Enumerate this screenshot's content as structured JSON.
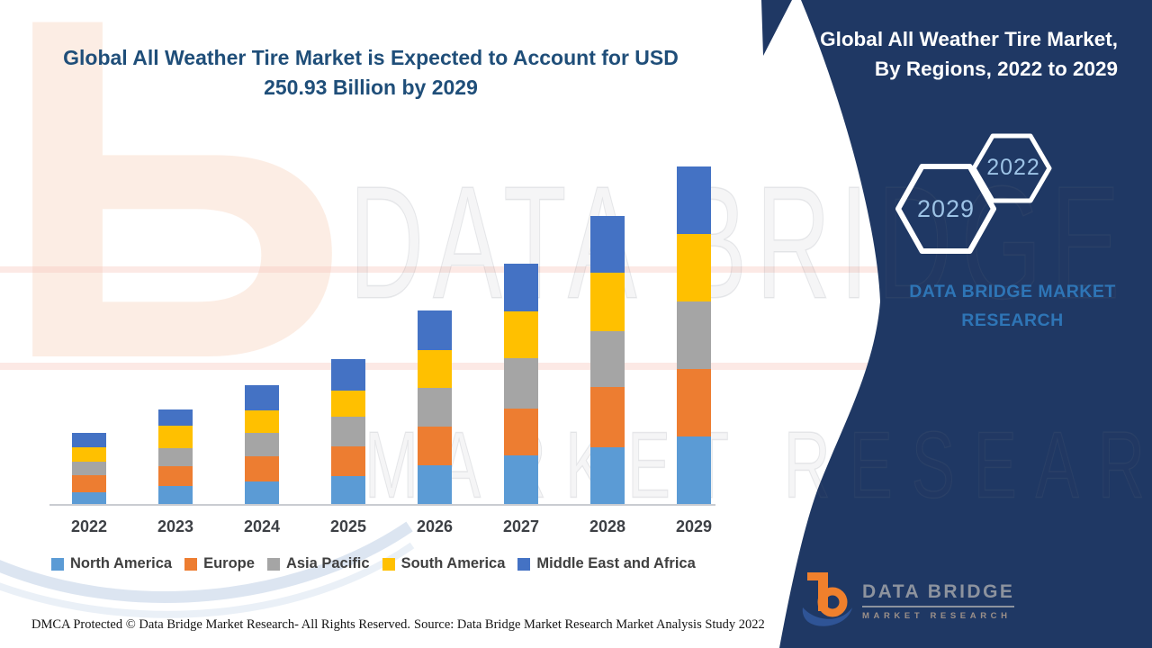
{
  "title": {
    "text": "Global All Weather Tire Market is Expected to Account for USD 250.93 Billion by 2029",
    "color": "#1F4E79"
  },
  "panel": {
    "bg_color": "#1F3864",
    "title_line1": "Global All Weather Tire Market,",
    "title_line2": "By Regions, 2022 to 2029",
    "hexagon_large_year": "2029",
    "hexagon_small_year": "2022",
    "hexagon_year_color": "#9DC3E6",
    "brand_caption": "DATA BRIDGE MARKET RESEARCH",
    "brand_caption_color": "#2E75B6"
  },
  "chart_data": {
    "type": "bar",
    "stacked": true,
    "title": "Global All Weather Tire Market, By Regions, 2022 to 2029",
    "unit": "USD Billion",
    "categories": [
      "2022",
      "2023",
      "2024",
      "2025",
      "2026",
      "2027",
      "2028",
      "2029"
    ],
    "series": [
      {
        "name": "North America",
        "color": "#5B9BD5",
        "values": [
          8.9,
          13.4,
          16.7,
          20.7,
          28.6,
          36.1,
          42.4,
          50.2
        ]
      },
      {
        "name": "Europe",
        "color": "#ED7D31",
        "values": [
          12.7,
          14.9,
          19.0,
          22.3,
          29.0,
          34.8,
          44.6,
          50.2
        ]
      },
      {
        "name": "Asia Pacific",
        "color": "#A5A5A5",
        "values": [
          9.6,
          12.9,
          17.4,
          21.6,
          29.0,
          37.5,
          41.3,
          50.2
        ]
      },
      {
        "name": "South America",
        "color": "#FFC000",
        "values": [
          11.2,
          16.7,
          16.5,
          19.7,
          27.9,
          34.8,
          44.0,
          50.2
        ]
      },
      {
        "name": "Middle East and Africa",
        "color": "#4472C4",
        "values": [
          10.5,
          12.7,
          18.5,
          23.4,
          29.4,
          35.5,
          42.0,
          50.13
        ]
      }
    ],
    "totals_by_year": [
      52.9,
      70.6,
      88.1,
      107.7,
      143.9,
      178.7,
      214.3,
      250.93
    ],
    "highlight_total_2029": 250.93,
    "xlabel": "",
    "ylabel": "",
    "grid": false,
    "legend_position": "bottom",
    "axis_labels_visible": {
      "x": true,
      "y": false
    }
  },
  "watermark": {
    "line1": "DATA BRIDGE",
    "line2": "MARKET RESEARCH",
    "b_glyph": "Ь"
  },
  "footer": {
    "dmca": "DMCA Protected © Data Bridge Market Research- All Rights Reserved.",
    "source": "Source: Data Bridge Market Research Market Analysis Study 2022"
  },
  "logo": {
    "name": "DATA BRIDGE",
    "subtitle": "MARKET RESEARCH"
  }
}
